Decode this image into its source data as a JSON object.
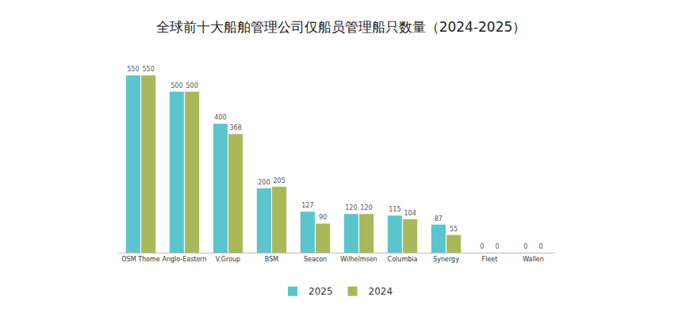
{
  "chart_data": {
    "type": "bar",
    "title": "全球前十大船舶管理公司仅船员管理船只数量（2024-2025）",
    "categories": [
      "OSM Thome",
      "Anglo-Eastern",
      "V.Group",
      "BSM",
      "Seacon",
      "Wilhelmsen",
      "Columbia",
      "Synergy",
      "Fleet",
      "Wallen"
    ],
    "series": [
      {
        "name": "2025",
        "color": "#5bc5cd",
        "values": [
          550,
          500,
          400,
          200,
          127,
          120,
          115,
          87,
          0,
          0
        ]
      },
      {
        "name": "2024",
        "color": "#a9b95a",
        "values": [
          550,
          500,
          368,
          205,
          90,
          120,
          104,
          55,
          0,
          0
        ]
      }
    ],
    "ylim": [
      0,
      600
    ],
    "data_labels": true,
    "tick_labels": "x",
    "grid": false,
    "legend": "bottom"
  }
}
